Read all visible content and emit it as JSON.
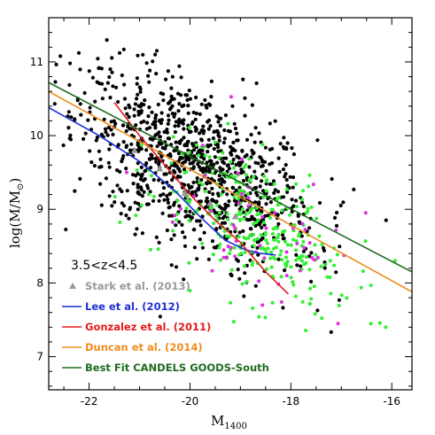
{
  "chart_data": {
    "type": "scatter",
    "xlabel_main": "M",
    "xlabel_sub": "1400",
    "ylabel": "log(M/M",
    "ylabel_sub": "⊙",
    "ylabel_close": ")",
    "xlim": [
      -22.8,
      -15.6
    ],
    "ylim": [
      6.55,
      11.6
    ],
    "x_ticks": [
      -22,
      -20,
      -18,
      -16
    ],
    "x_tick_labels": [
      "-22",
      "-20",
      "-18",
      "-16"
    ],
    "y_ticks": [
      7,
      8,
      9,
      10,
      11
    ],
    "y_tick_labels": [
      "7",
      "8",
      "9",
      "10",
      "11"
    ],
    "redshift_label": "3.5<z<4.5",
    "colors": {
      "black_points": "#000000",
      "green_points": "#33ee33",
      "magenta_points": "#dd33dd",
      "stark": "#999999",
      "lee": "#1f2fd6",
      "gonzalez": "#e41a1a",
      "duncan": "#f08c1e",
      "best_fit": "#1f6b1f"
    },
    "legend": [
      {
        "label": "Stark et al. (2013)",
        "color": "#999999",
        "marker": "triangle"
      },
      {
        "label": "Lee et al. (2012)",
        "color": "#1f2fd6",
        "marker": "line"
      },
      {
        "label": "Gonzalez et al. (2011)",
        "color": "#e41a1a",
        "marker": "line"
      },
      {
        "label": "Duncan et al. (2014)",
        "color": "#f08c1e",
        "marker": "line"
      },
      {
        "label": "Best Fit CANDELS GOODS-South",
        "color": "#1f6b1f",
        "marker": "line"
      }
    ],
    "lines": [
      {
        "x": [
          -22.8,
          -21.8,
          -21.0,
          -20.3,
          -19.8,
          -19.3,
          -18.9,
          -18.6,
          -18.3
        ],
        "y": [
          10.38,
          10.0,
          9.65,
          9.25,
          8.9,
          8.58,
          8.45,
          8.4,
          8.38
        ]
      },
      {
        "x": [
          -21.5,
          -21.0,
          -20.5,
          -20.0,
          -19.5,
          -19.0,
          -18.5,
          -18.05
        ],
        "y": [
          10.45,
          10.0,
          9.6,
          9.2,
          8.85,
          8.55,
          8.15,
          7.85
        ]
      },
      {
        "x": [
          -22.8,
          -15.6
        ],
        "y": [
          10.6,
          7.88
        ]
      },
      {
        "x": [
          -22.8,
          -15.6
        ],
        "y": [
          10.72,
          8.15
        ]
      }
    ],
    "stark_points": [
      {
        "x": -21.1,
        "y": 9.8
      },
      {
        "x": -20.6,
        "y": 9.55
      },
      {
        "x": -20.1,
        "y": 9.22
      },
      {
        "x": -19.6,
        "y": 9.08
      },
      {
        "x": -19.1,
        "y": 8.9
      }
    ],
    "scatter_generation": {
      "black_count": 1000,
      "green_count": 300,
      "magenta_count": 55
    }
  }
}
